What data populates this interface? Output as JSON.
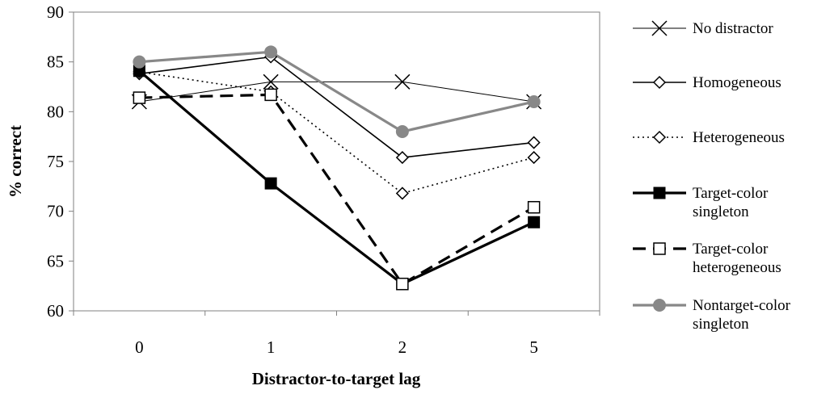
{
  "chart_data": {
    "type": "line",
    "title": "",
    "xlabel": "Distractor-to-target lag",
    "ylabel": "% correct",
    "categories": [
      "0",
      "1",
      "2",
      "5"
    ],
    "ylim": [
      60,
      90
    ],
    "yticks": [
      60,
      65,
      70,
      75,
      80,
      85,
      90
    ],
    "grid": false,
    "legend": "right",
    "series": [
      {
        "name": "No distractor",
        "legend_lines": [
          "No distractor"
        ],
        "values": [
          81,
          83,
          83,
          81
        ],
        "marker": "x",
        "color": "#000000",
        "style": "thin"
      },
      {
        "name": "Homogeneous",
        "legend_lines": [
          "Homogeneous"
        ],
        "values": [
          83.8,
          85.5,
          75.4,
          76.9
        ],
        "marker": "diamond-open",
        "color": "#000000",
        "style": "solid"
      },
      {
        "name": "Heterogeneous",
        "legend_lines": [
          "Heterogeneous"
        ],
        "values": [
          84.0,
          82.0,
          71.8,
          75.4
        ],
        "marker": "diamond-open",
        "color": "#000000",
        "style": "dotted"
      },
      {
        "name": "Target-color singleton",
        "legend_lines": [
          "Target-color",
          "singleton"
        ],
        "values": [
          84.1,
          72.8,
          62.7,
          68.9
        ],
        "marker": "square-filled",
        "color": "#000000",
        "style": "thick"
      },
      {
        "name": "Target-color heterogeneous",
        "legend_lines": [
          "Target-color",
          "heterogeneous"
        ],
        "values": [
          81.4,
          81.7,
          62.7,
          70.4
        ],
        "marker": "square-open",
        "color": "#000000",
        "style": "dashed"
      },
      {
        "name": "Nontarget-color singleton",
        "legend_lines": [
          "Nontarget-color",
          "singleton"
        ],
        "values": [
          85.0,
          86.0,
          78.0,
          81.0
        ],
        "marker": "circle-filled",
        "color": "#888888",
        "style": "thick-gray"
      }
    ]
  }
}
